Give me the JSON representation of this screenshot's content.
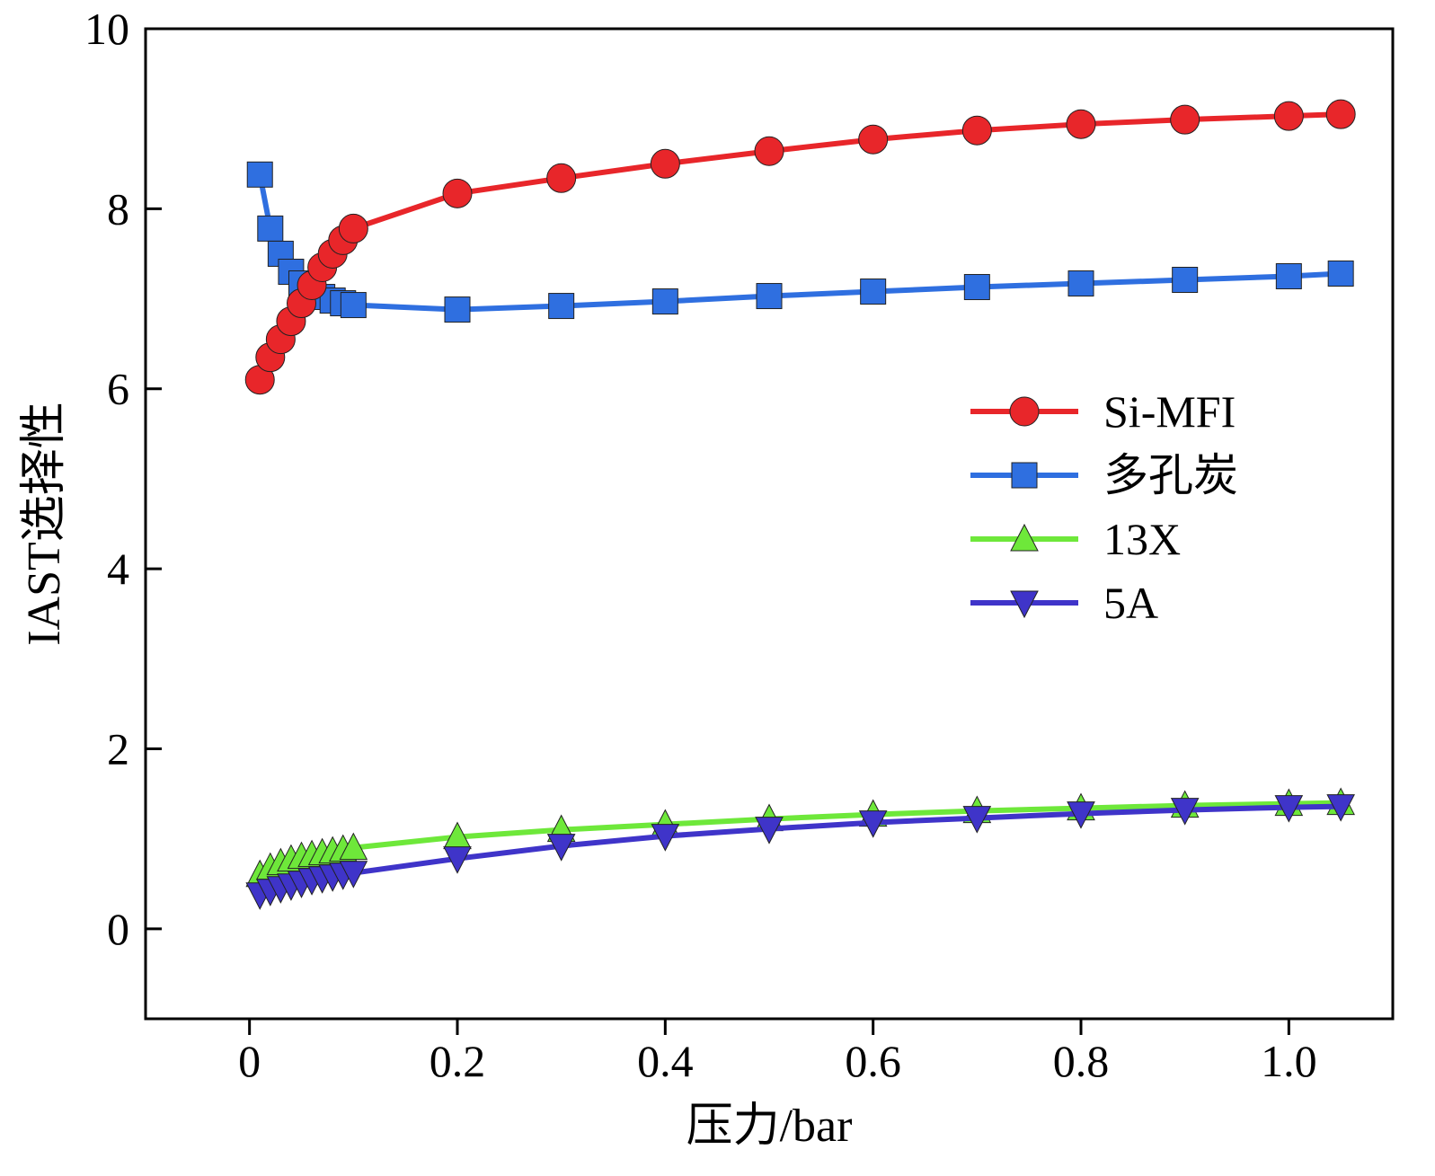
{
  "chart_data": {
    "type": "line",
    "title": "",
    "xlabel": "压力/bar",
    "ylabel": "IAST选择性",
    "xlim": [
      -0.1,
      1.1
    ],
    "ylim": [
      -1,
      10
    ],
    "xticks": [
      0,
      0.2,
      0.4,
      0.6,
      0.8,
      1.0
    ],
    "xtick_labels": [
      "0",
      "0.2",
      "0.4",
      "0.6",
      "0.8",
      "1.0"
    ],
    "yticks": [
      0,
      2,
      4,
      6,
      8,
      10
    ],
    "ytick_labels": [
      "0",
      "2",
      "4",
      "6",
      "8",
      "10"
    ],
    "grid": false,
    "legend_position": "center-right",
    "series": [
      {
        "name": "Si-MFI",
        "color": "#e8262a",
        "marker": "circle",
        "x": [
          0.01,
          0.02,
          0.03,
          0.04,
          0.05,
          0.06,
          0.07,
          0.08,
          0.09,
          0.1,
          0.2,
          0.3,
          0.4,
          0.5,
          0.6,
          0.7,
          0.8,
          0.9,
          1.0,
          1.05
        ],
        "y": [
          6.1,
          6.35,
          6.55,
          6.75,
          6.95,
          7.15,
          7.35,
          7.5,
          7.65,
          7.78,
          8.17,
          8.34,
          8.5,
          8.64,
          8.77,
          8.87,
          8.94,
          8.99,
          9.03,
          9.05
        ]
      },
      {
        "name": "多孔炭",
        "color": "#2f6fe0",
        "marker": "square",
        "x": [
          0.01,
          0.02,
          0.03,
          0.04,
          0.05,
          0.06,
          0.07,
          0.08,
          0.09,
          0.1,
          0.2,
          0.3,
          0.4,
          0.5,
          0.6,
          0.7,
          0.8,
          0.9,
          1.0,
          1.05
        ],
        "y": [
          8.38,
          7.78,
          7.5,
          7.3,
          7.17,
          7.08,
          7.02,
          6.98,
          6.95,
          6.93,
          6.88,
          6.92,
          6.97,
          7.03,
          7.08,
          7.13,
          7.17,
          7.21,
          7.25,
          7.28
        ]
      },
      {
        "name": "13X",
        "color": "#6ee83a",
        "marker": "triangle-up",
        "x": [
          0.01,
          0.02,
          0.03,
          0.04,
          0.05,
          0.06,
          0.07,
          0.08,
          0.09,
          0.1,
          0.2,
          0.3,
          0.4,
          0.5,
          0.6,
          0.7,
          0.8,
          0.9,
          1.0,
          1.05
        ],
        "y": [
          0.6,
          0.68,
          0.73,
          0.77,
          0.8,
          0.82,
          0.84,
          0.86,
          0.88,
          0.9,
          1.02,
          1.1,
          1.16,
          1.22,
          1.27,
          1.31,
          1.34,
          1.37,
          1.39,
          1.4
        ]
      },
      {
        "name": "5A",
        "color": "#3f34c9",
        "marker": "triangle-down",
        "x": [
          0.01,
          0.02,
          0.03,
          0.04,
          0.05,
          0.06,
          0.07,
          0.08,
          0.09,
          0.1,
          0.2,
          0.3,
          0.4,
          0.5,
          0.6,
          0.7,
          0.8,
          0.9,
          1.0,
          1.05
        ],
        "y": [
          0.38,
          0.42,
          0.45,
          0.48,
          0.51,
          0.54,
          0.56,
          0.58,
          0.6,
          0.62,
          0.78,
          0.92,
          1.03,
          1.11,
          1.18,
          1.23,
          1.28,
          1.32,
          1.35,
          1.36
        ]
      }
    ]
  }
}
